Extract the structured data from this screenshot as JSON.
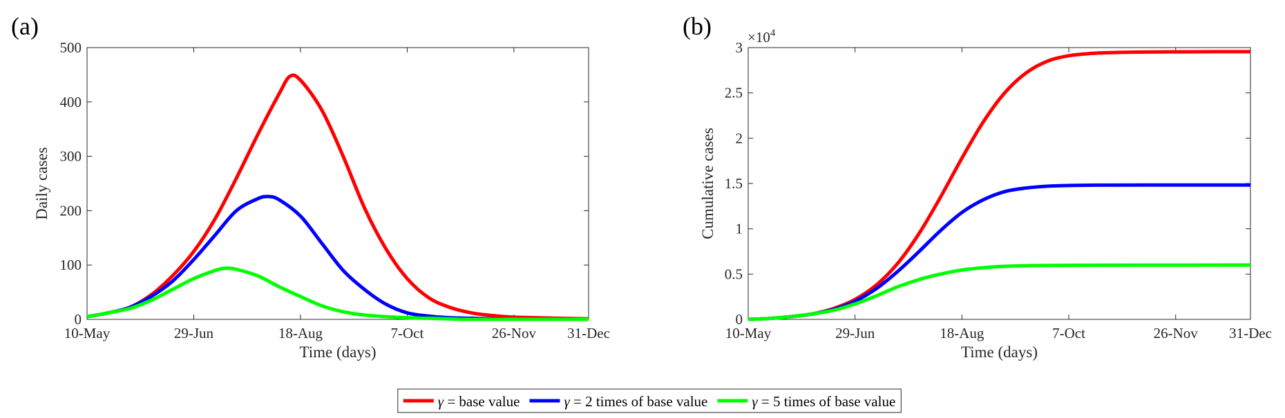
{
  "panels": [
    "(a)",
    "(b)"
  ],
  "legend": {
    "symbol": "γ",
    "items": [
      {
        "label": " = base value",
        "color": "#ff0000"
      },
      {
        "label": " = 2 times of base value",
        "color": "#0000ff"
      },
      {
        "label": " = 5 times of base value",
        "color": "#00ff00"
      }
    ]
  },
  "chart_data": [
    {
      "type": "line",
      "title": "",
      "xlabel": "Time (days)",
      "ylabel": "Daily cases",
      "xticks": [
        "10-May",
        "29-Jun",
        "18-Aug",
        "7-Oct",
        "26-Nov",
        "31-Dec"
      ],
      "yticks": [
        "0",
        "100",
        "200",
        "300",
        "400",
        "500"
      ],
      "xlim": [
        "10-May",
        "31-Dec"
      ],
      "ylim": [
        0,
        500
      ],
      "grid": false,
      "series": [
        {
          "color": "#ff0000",
          "x": [
            "10-May",
            "20-May",
            "30-May",
            "9-Jun",
            "19-Jun",
            "29-Jun",
            "9-Jul",
            "19-Jul",
            "29-Jul",
            "8-Aug",
            "13-Aug",
            "18-Aug",
            "28-Aug",
            "7-Sep",
            "17-Sep",
            "27-Sep",
            "7-Oct",
            "17-Oct",
            "27-Oct",
            "6-Nov",
            "16-Nov",
            "26-Nov",
            "6-Dec",
            "16-Dec",
            "31-Dec"
          ],
          "y": [
            5,
            12,
            22,
            45,
            80,
            125,
            185,
            260,
            340,
            415,
            447,
            440,
            385,
            300,
            205,
            130,
            75,
            40,
            22,
            12,
            7,
            4,
            3,
            2,
            1
          ]
        },
        {
          "color": "#0000ff",
          "x": [
            "10-May",
            "20-May",
            "30-May",
            "9-Jun",
            "19-Jun",
            "29-Jun",
            "9-Jul",
            "19-Jul",
            "29-Jul",
            "3-Aug",
            "8-Aug",
            "18-Aug",
            "28-Aug",
            "7-Sep",
            "17-Sep",
            "27-Sep",
            "7-Oct",
            "17-Oct",
            "27-Oct",
            "6-Nov",
            "16-Nov",
            "26-Nov",
            "31-Dec"
          ],
          "y": [
            5,
            12,
            22,
            42,
            70,
            110,
            155,
            200,
            222,
            226,
            220,
            190,
            140,
            90,
            55,
            28,
            12,
            6,
            3,
            2,
            1,
            0,
            0
          ]
        },
        {
          "color": "#00ff00",
          "x": [
            "10-May",
            "20-May",
            "30-May",
            "9-Jun",
            "19-Jun",
            "29-Jun",
            "9-Jul",
            "14-Jul",
            "19-Jul",
            "29-Jul",
            "8-Aug",
            "18-Aug",
            "28-Aug",
            "7-Sep",
            "17-Sep",
            "27-Sep",
            "7-Oct",
            "17-Oct",
            "27-Oct",
            "6-Nov",
            "31-Dec"
          ],
          "y": [
            5,
            12,
            20,
            35,
            55,
            75,
            90,
            94,
            92,
            80,
            60,
            42,
            25,
            14,
            8,
            5,
            3,
            2,
            1,
            0,
            0
          ]
        }
      ]
    },
    {
      "type": "line",
      "title": "",
      "xlabel": "Time (days)",
      "ylabel": "Cumulative cases",
      "scale_label": "×10",
      "scale_exponent": "4",
      "xticks": [
        "10-May",
        "29-Jun",
        "18-Aug",
        "7-Oct",
        "26-Nov",
        "31-Dec"
      ],
      "yticks": [
        "0",
        "0.5",
        "1",
        "1.5",
        "2",
        "2.5",
        "3"
      ],
      "xlim": [
        "10-May",
        "31-Dec"
      ],
      "ylim": [
        0,
        3
      ],
      "grid": false,
      "series": [
        {
          "color": "#ff0000",
          "x": [
            "10-May",
            "20-May",
            "30-May",
            "9-Jun",
            "19-Jun",
            "29-Jun",
            "9-Jul",
            "19-Jul",
            "29-Jul",
            "8-Aug",
            "18-Aug",
            "28-Aug",
            "7-Sep",
            "17-Sep",
            "27-Sep",
            "7-Oct",
            "17-Oct",
            "27-Oct",
            "6-Nov",
            "26-Nov",
            "16-Dec",
            "31-Dec"
          ],
          "y": [
            0,
            0.01,
            0.03,
            0.06,
            0.12,
            0.22,
            0.38,
            0.62,
            0.95,
            1.35,
            1.78,
            2.18,
            2.5,
            2.72,
            2.85,
            2.91,
            2.935,
            2.945,
            2.95,
            2.953,
            2.955,
            2.955
          ]
        },
        {
          "color": "#0000ff",
          "x": [
            "10-May",
            "20-May",
            "30-May",
            "9-Jun",
            "19-Jun",
            "29-Jun",
            "9-Jul",
            "19-Jul",
            "29-Jul",
            "8-Aug",
            "18-Aug",
            "28-Aug",
            "7-Sep",
            "17-Sep",
            "27-Sep",
            "7-Oct",
            "17-Oct",
            "27-Oct",
            "26-Nov",
            "31-Dec"
          ],
          "y": [
            0,
            0.01,
            0.03,
            0.06,
            0.11,
            0.2,
            0.34,
            0.53,
            0.75,
            0.98,
            1.18,
            1.32,
            1.41,
            1.45,
            1.47,
            1.478,
            1.481,
            1.482,
            1.483,
            1.483
          ]
        },
        {
          "color": "#00ff00",
          "x": [
            "10-May",
            "20-May",
            "30-May",
            "9-Jun",
            "19-Jun",
            "29-Jun",
            "9-Jul",
            "19-Jul",
            "29-Jul",
            "8-Aug",
            "18-Aug",
            "28-Aug",
            "7-Sep",
            "17-Sep",
            "7-Oct",
            "26-Nov",
            "31-Dec"
          ],
          "y": [
            0,
            0.01,
            0.03,
            0.06,
            0.1,
            0.17,
            0.26,
            0.36,
            0.44,
            0.5,
            0.545,
            0.57,
            0.585,
            0.592,
            0.597,
            0.599,
            0.6
          ]
        }
      ]
    }
  ]
}
